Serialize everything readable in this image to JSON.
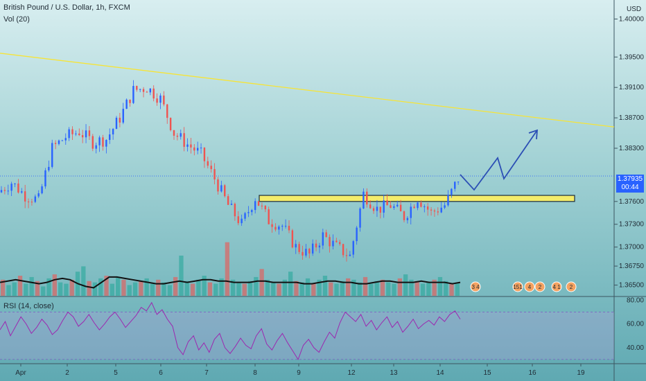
{
  "header": {
    "symbol_title": "British Pound / U.S. Dollar, 1h, FXCM",
    "volume_label": "Vol (20)",
    "rsi_label": "RSI (14, close)",
    "currency": "USD"
  },
  "last_price": {
    "value": "1.37935",
    "countdown": "00:44"
  },
  "colors": {
    "up": "#2962ff",
    "down": "#ef5350",
    "trendline": "#f7e436",
    "zone_fill": "#f4ec6a",
    "rsi": "#9c27b0",
    "arrow": "#2c4fb5"
  },
  "events": [
    "3 4",
    "151",
    "4",
    "2",
    "4 1",
    "2"
  ],
  "chart_data": [
    {
      "type": "candlestick",
      "title": "British Pound / U.S. Dollar, 1h, FXCM",
      "y_ticks": [
        "1.40000",
        "1.39500",
        "1.39100",
        "1.38700",
        "1.38300",
        "1.37600",
        "1.37300",
        "1.37000",
        "1.36750",
        "1.36500"
      ],
      "y_tick_values": [
        1.4,
        1.395,
        1.391,
        1.387,
        1.383,
        1.376,
        1.373,
        1.37,
        1.3675,
        1.365
      ],
      "x_ticks": [
        "Apr",
        "2",
        "5",
        "6",
        "7",
        "8",
        "9",
        "12",
        "13",
        "14",
        "15",
        "16",
        "19"
      ],
      "ylim": [
        1.3635,
        1.4025
      ],
      "path_points": [
        1.3772,
        1.3785,
        1.3768,
        1.3762,
        1.383,
        1.3845,
        1.3852,
        1.3838,
        1.3842,
        1.387,
        1.3906,
        1.391,
        1.3895,
        1.385,
        1.3835,
        1.3822,
        1.379,
        1.3755,
        1.373,
        1.3765,
        1.3735,
        1.3728,
        1.37,
        1.369,
        1.3715,
        1.37,
        1.3688,
        1.377,
        1.375,
        1.3755,
        1.374,
        1.3765,
        1.3745,
        1.3755,
        1.379
      ],
      "trendline": {
        "start": 1.3955,
        "end": 1.3858
      },
      "support_zone": {
        "top": 1.3768,
        "bottom": 1.376
      },
      "last_price": 1.37935
    },
    {
      "type": "bar",
      "title": "Vol (20)",
      "values": [
        12,
        8,
        10,
        15,
        9,
        14,
        11,
        7,
        13,
        16,
        10,
        9,
        12,
        18,
        22,
        11,
        10,
        13,
        15,
        9,
        14,
        12,
        8,
        10,
        11,
        13,
        9,
        12,
        10,
        8,
        14,
        30,
        11,
        9,
        12,
        15,
        10,
        9,
        13,
        40,
        12,
        10,
        9,
        11,
        14,
        20,
        12,
        10,
        9,
        12,
        18,
        11,
        10,
        13,
        9,
        12,
        15,
        10,
        9,
        11,
        13,
        12,
        10,
        14,
        9,
        11,
        12,
        10,
        9,
        13,
        16,
        12,
        11,
        9,
        10,
        12,
        14,
        11,
        9,
        10
      ],
      "ma_values": [
        10,
        11,
        12,
        11,
        10,
        9,
        10,
        12,
        13,
        12,
        9,
        7,
        6,
        10,
        14,
        14,
        13,
        12,
        11,
        10,
        9,
        9,
        10,
        11,
        10,
        11,
        12,
        12,
        11,
        11,
        10,
        10,
        10,
        11,
        11,
        10,
        10,
        10,
        10,
        9,
        9,
        10,
        11,
        11,
        10,
        10,
        9,
        9,
        10,
        11,
        11,
        10,
        10,
        10,
        11,
        10,
        10,
        10,
        9,
        10
      ]
    },
    {
      "type": "line",
      "title": "RSI (14, close)",
      "y_ticks": [
        "80.00",
        "60.00",
        "40.00"
      ],
      "y_tick_values": [
        80,
        60,
        40
      ],
      "ylim": [
        27,
        82
      ],
      "values": [
        55,
        62,
        50,
        58,
        66,
        60,
        52,
        57,
        64,
        59,
        51,
        55,
        63,
        70,
        66,
        58,
        62,
        68,
        61,
        55,
        60,
        66,
        70,
        64,
        57,
        62,
        67,
        74,
        71,
        78,
        68,
        72,
        64,
        58,
        40,
        34,
        45,
        50,
        38,
        44,
        36,
        47,
        52,
        40,
        35,
        41,
        48,
        42,
        39,
        50,
        56,
        43,
        38,
        46,
        52,
        44,
        37,
        30,
        42,
        47,
        40,
        36,
        45,
        53,
        48,
        61,
        70,
        66,
        62,
        68,
        58,
        63,
        55,
        61,
        66,
        57,
        62,
        53,
        58,
        64,
        56,
        60,
        63,
        59,
        66,
        62,
        68,
        71,
        64
      ]
    }
  ]
}
